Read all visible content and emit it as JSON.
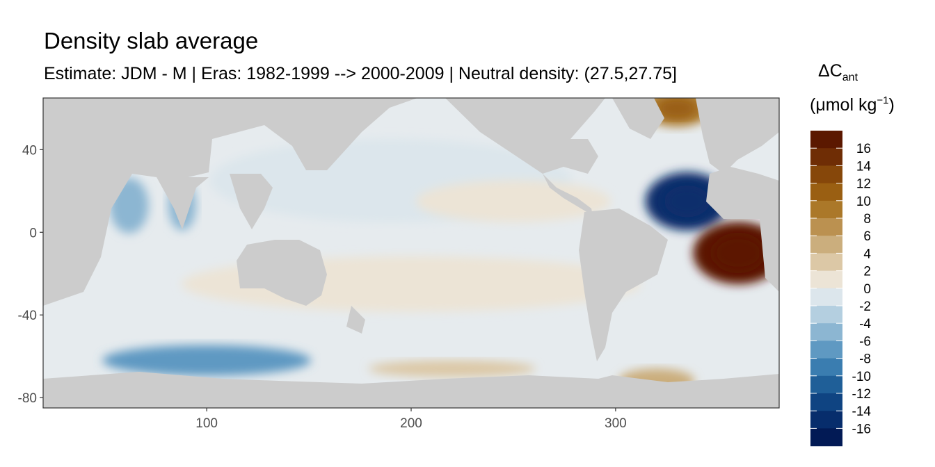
{
  "chart_data": {
    "type": "heatmap",
    "title": "Density slab average",
    "subtitle": "Estimate: JDM - M | Eras: 1982-1999 --> 2000-2009 | Neutral density: (27.5,27.75]",
    "xlabel": "",
    "ylabel": "",
    "xlim": [
      20,
      380
    ],
    "ylim": [
      -85,
      65
    ],
    "x_ticks": [
      100,
      200,
      300
    ],
    "y_ticks": [
      40,
      0,
      -40,
      -80
    ],
    "land_color": "#cccccc",
    "legend": {
      "title_main": "ΔC",
      "title_sub": "ant",
      "unit_prefix": "(μmol kg",
      "unit_exp": "−1",
      "unit_suffix": ")",
      "labels": [
        "16",
        "14",
        "12",
        "10",
        "8",
        "6",
        "4",
        "2",
        "0",
        "-2",
        "-4",
        "-6",
        "-8",
        "-10",
        "-12",
        "-14",
        "-16"
      ],
      "colors": [
        "#5b1800",
        "#6f2d05",
        "#86470a",
        "#9a5f12",
        "#ab7829",
        "#bb9150",
        "#cbae7d",
        "#dcc8a6",
        "#ece4d6",
        "#dce6ec",
        "#b4cfe0",
        "#8cb6d2",
        "#5f99c2",
        "#3a7db0",
        "#1f5f98",
        "#0f4482",
        "#072d6c",
        "#021a55"
      ]
    },
    "regions": [
      {
        "name": "north-atlantic-subtropical-negative",
        "lon_center": 335,
        "lat_center": 15,
        "value": -15
      },
      {
        "name": "south-atlantic-tropical-positive",
        "lon_center": 360,
        "lat_center": -10,
        "value": 17
      },
      {
        "name": "greenland-irminger-positive",
        "lon_center": 330,
        "lat_center": 60,
        "value": 10
      },
      {
        "name": "arabian-sea-negative",
        "lon_center": 62,
        "lat_center": 13,
        "value": -5
      },
      {
        "name": "bay-of-bengal-negative",
        "lon_center": 88,
        "lat_center": 13,
        "value": -4
      },
      {
        "name": "southern-ocean-indian-negative",
        "lon_center": 100,
        "lat_center": -62,
        "value": -7
      },
      {
        "name": "weddell-positive",
        "lon_center": 320,
        "lat_center": -72,
        "value": 6
      },
      {
        "name": "pacific-antarctic-positive",
        "lon_center": 220,
        "lat_center": -66,
        "value": 3
      },
      {
        "name": "south-subtropical-band-positive",
        "lon_center": 200,
        "lat_center": -25,
        "value": 1
      },
      {
        "name": "east-pacific-positive",
        "lon_center": 250,
        "lat_center": 15,
        "value": 1
      },
      {
        "name": "pacific-background",
        "lon_center": 190,
        "lat_center": 25,
        "value": -1
      }
    ]
  }
}
